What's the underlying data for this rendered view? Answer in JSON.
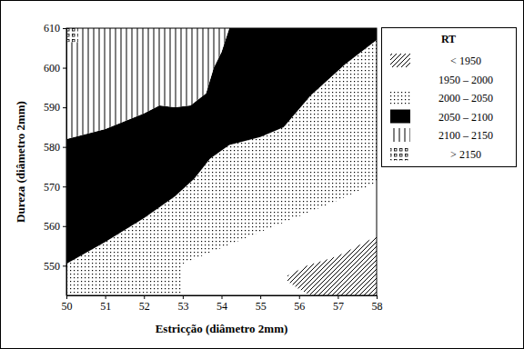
{
  "chart_data": {
    "type": "contour",
    "x_label": "Estricção (diâmetro 2mm)",
    "y_label": "Dureza (diâmetro 2mm)",
    "legend_title": "RT",
    "legend": "right",
    "grid": false,
    "xlim": [
      50,
      58
    ],
    "ylim": [
      542.5,
      610
    ],
    "xticks": [
      50,
      51,
      52,
      53,
      54,
      55,
      56,
      57,
      58
    ],
    "yticks": [
      550,
      560,
      570,
      580,
      590,
      600,
      610
    ],
    "series": [
      {
        "name": "< 1950",
        "color": "#000000",
        "marker": "hatch",
        "x": [
          56.3,
          56,
          55.7,
          55.7,
          56.2,
          57,
          57.6,
          58,
          58
        ],
        "y": [
          542.5,
          544,
          546,
          547.5,
          550,
          552.5,
          555.5,
          557.5,
          542.5
        ]
      },
      {
        "name": "1950 – 2000",
        "color": "#000000",
        "marker": "none",
        "x": [
          53,
          53,
          54,
          55,
          56,
          57,
          58,
          58,
          57.6,
          57,
          56.2,
          55.7,
          55.7,
          56,
          56.3
        ],
        "y": [
          542.5,
          550.5,
          554.5,
          558.5,
          562.5,
          566.5,
          571,
          557.5,
          555.5,
          552.5,
          550,
          547.5,
          546,
          544,
          542.5
        ]
      },
      {
        "name": "2000 – 2050",
        "color": "#000000",
        "marker": "dots",
        "x": [
          50,
          51,
          52,
          52.8,
          53.3,
          53.7,
          54.2,
          55,
          55.6,
          56.3,
          57.2,
          58,
          58,
          57,
          56,
          55,
          54,
          53,
          53,
          50
        ],
        "y": [
          550.5,
          556,
          562,
          567.5,
          572,
          577,
          580.5,
          582.5,
          585,
          593,
          601,
          607,
          571,
          566.5,
          562.5,
          558.5,
          554.5,
          550.5,
          542.5,
          542.5
        ]
      },
      {
        "name": "2050 – 2100",
        "color": "#000000",
        "marker": "solid",
        "x": [
          50,
          51,
          52,
          52.4,
          52.8,
          53.2,
          53.6,
          53.8,
          54,
          54.2,
          58,
          58,
          57.2,
          56.3,
          55.6,
          55,
          54.2,
          53.7,
          53.3,
          52.8,
          52,
          51,
          50
        ],
        "y": [
          582,
          584.5,
          588.5,
          590.5,
          590,
          590.5,
          593.5,
          600,
          604,
          610,
          610,
          607,
          601,
          593,
          585,
          582.5,
          580.5,
          577,
          572,
          567.5,
          562,
          556,
          550.5
        ]
      },
      {
        "name": "2100 – 2150",
        "color": "#000000",
        "marker": "vlines",
        "x": [
          50,
          51,
          52,
          52.4,
          52.8,
          53.2,
          53.6,
          53.8,
          54,
          54.2,
          50.3,
          50.3,
          50
        ],
        "y": [
          582,
          584.5,
          588.5,
          590.5,
          590,
          590.5,
          593.5,
          600,
          604,
          610,
          610,
          606.5,
          606.5
        ]
      },
      {
        "name": "> 2150",
        "color": "#000000",
        "marker": "squares",
        "x": [
          50,
          50.3,
          50.3,
          50
        ],
        "y": [
          610,
          610,
          606.5,
          606.5
        ]
      }
    ]
  }
}
